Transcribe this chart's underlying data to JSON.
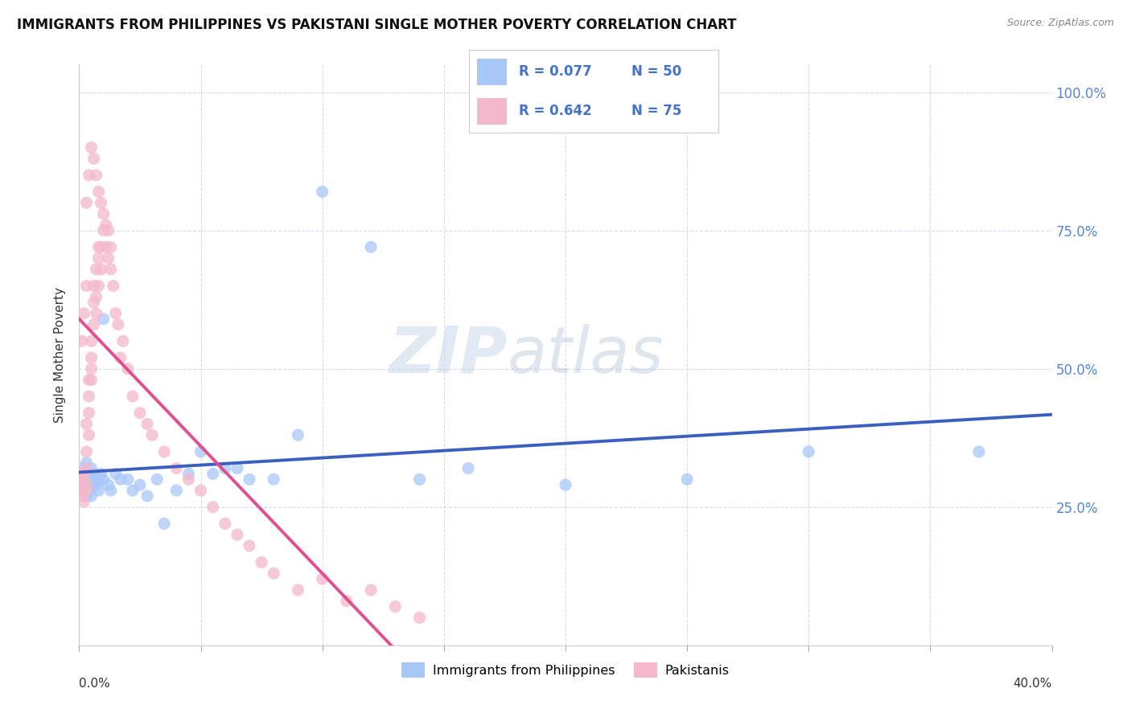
{
  "title": "IMMIGRANTS FROM PHILIPPINES VS PAKISTANI SINGLE MOTHER POVERTY CORRELATION CHART",
  "source": "Source: ZipAtlas.com",
  "ylabel": "Single Mother Poverty",
  "xlim": [
    0.0,
    0.4
  ],
  "ylim": [
    0.0,
    1.05
  ],
  "watermark_zip": "ZIP",
  "watermark_atlas": "atlas",
  "color_philippines": "#a8c8f8",
  "color_pakistani": "#f4b8cc",
  "trendline_philippines": "#3a5fbf",
  "trendline_pakistani": "#e05090",
  "legend_r1": "R = 0.077",
  "legend_n1": "N = 50",
  "legend_r2": "R = 0.642",
  "legend_n2": "N = 75",
  "philippines_x": [
    0.001,
    0.001,
    0.002,
    0.002,
    0.002,
    0.003,
    0.003,
    0.003,
    0.004,
    0.004,
    0.004,
    0.005,
    0.005,
    0.005,
    0.006,
    0.006,
    0.007,
    0.007,
    0.008,
    0.008,
    0.009,
    0.01,
    0.01,
    0.012,
    0.013,
    0.015,
    0.017,
    0.02,
    0.022,
    0.025,
    0.028,
    0.032,
    0.035,
    0.04,
    0.045,
    0.05,
    0.055,
    0.06,
    0.065,
    0.07,
    0.08,
    0.09,
    0.1,
    0.12,
    0.14,
    0.16,
    0.2,
    0.25,
    0.3,
    0.37
  ],
  "philippines_y": [
    0.31,
    0.29,
    0.3,
    0.28,
    0.32,
    0.27,
    0.31,
    0.33,
    0.29,
    0.3,
    0.28,
    0.32,
    0.29,
    0.27,
    0.3,
    0.31,
    0.3,
    0.29,
    0.28,
    0.3,
    0.31,
    0.59,
    0.3,
    0.29,
    0.28,
    0.31,
    0.3,
    0.3,
    0.28,
    0.29,
    0.27,
    0.3,
    0.22,
    0.28,
    0.31,
    0.35,
    0.31,
    0.32,
    0.32,
    0.3,
    0.3,
    0.38,
    0.82,
    0.72,
    0.3,
    0.32,
    0.29,
    0.3,
    0.35,
    0.35
  ],
  "pakistani_x": [
    0.001,
    0.001,
    0.001,
    0.002,
    0.002,
    0.002,
    0.002,
    0.003,
    0.003,
    0.003,
    0.003,
    0.003,
    0.004,
    0.004,
    0.004,
    0.004,
    0.005,
    0.005,
    0.005,
    0.005,
    0.006,
    0.006,
    0.006,
    0.007,
    0.007,
    0.007,
    0.008,
    0.008,
    0.008,
    0.009,
    0.009,
    0.01,
    0.01,
    0.011,
    0.011,
    0.012,
    0.012,
    0.013,
    0.013,
    0.014,
    0.015,
    0.016,
    0.017,
    0.018,
    0.02,
    0.022,
    0.025,
    0.028,
    0.03,
    0.035,
    0.04,
    0.045,
    0.05,
    0.055,
    0.06,
    0.065,
    0.07,
    0.075,
    0.08,
    0.09,
    0.1,
    0.11,
    0.12,
    0.13,
    0.14,
    0.001,
    0.002,
    0.003,
    0.003,
    0.004,
    0.005,
    0.006,
    0.007,
    0.008,
    0.009
  ],
  "pakistani_y": [
    0.31,
    0.29,
    0.27,
    0.31,
    0.28,
    0.26,
    0.3,
    0.32,
    0.29,
    0.28,
    0.35,
    0.4,
    0.38,
    0.42,
    0.45,
    0.48,
    0.5,
    0.52,
    0.48,
    0.55,
    0.58,
    0.62,
    0.65,
    0.6,
    0.63,
    0.68,
    0.65,
    0.7,
    0.72,
    0.68,
    0.72,
    0.75,
    0.78,
    0.72,
    0.76,
    0.7,
    0.75,
    0.68,
    0.72,
    0.65,
    0.6,
    0.58,
    0.52,
    0.55,
    0.5,
    0.45,
    0.42,
    0.4,
    0.38,
    0.35,
    0.32,
    0.3,
    0.28,
    0.25,
    0.22,
    0.2,
    0.18,
    0.15,
    0.13,
    0.1,
    0.12,
    0.08,
    0.1,
    0.07,
    0.05,
    0.55,
    0.6,
    0.65,
    0.8,
    0.85,
    0.9,
    0.88,
    0.85,
    0.82,
    0.8
  ]
}
